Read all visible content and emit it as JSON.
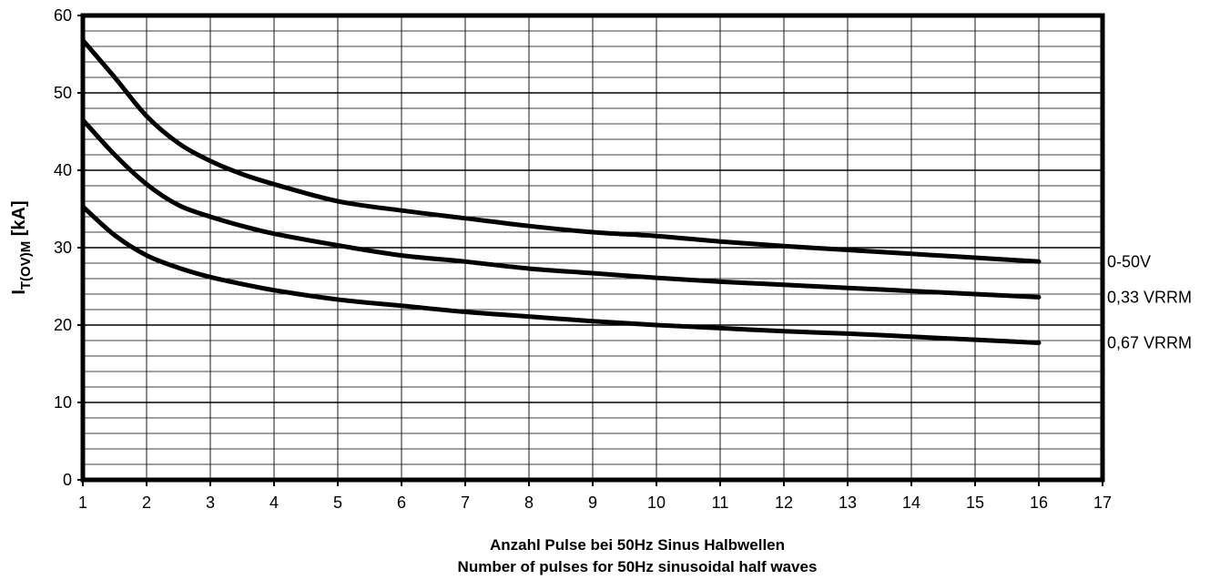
{
  "chart_data": {
    "type": "line",
    "title": "",
    "xlabel_lines": [
      "Anzahl Pulse bei 50Hz Sinus Halbwellen",
      "Number of pulses for 50Hz sinusoidal half waves"
    ],
    "ylabel_main": "I",
    "ylabel_sub": "T(OV)M",
    "ylabel_unit": " [kA]",
    "xlim": [
      1,
      17
    ],
    "ylim": [
      0,
      60
    ],
    "x_ticks": [
      1,
      2,
      3,
      4,
      5,
      6,
      7,
      8,
      9,
      10,
      11,
      12,
      13,
      14,
      15,
      16,
      17
    ],
    "y_ticks": [
      0,
      10,
      20,
      30,
      40,
      50,
      60
    ],
    "grid": true,
    "series": [
      {
        "name": "0-50V",
        "x": [
          1,
          1.5,
          2,
          2.5,
          3,
          3.5,
          4,
          5,
          6,
          7,
          8,
          9,
          10,
          11,
          12,
          13,
          14,
          15,
          16
        ],
        "y": [
          56.8,
          52,
          47,
          43.5,
          41.2,
          39.5,
          38.2,
          36,
          34.8,
          33.8,
          32.8,
          32,
          31.5,
          30.8,
          30.2,
          29.7,
          29.2,
          28.7,
          28.2
        ]
      },
      {
        "name": "0,33 VRRM",
        "x": [
          1,
          1.5,
          2,
          2.5,
          3,
          3.5,
          4,
          5,
          6,
          7,
          8,
          9,
          10,
          11,
          12,
          13,
          14,
          15,
          16
        ],
        "y": [
          46.5,
          42,
          38.2,
          35.5,
          34,
          32.8,
          31.8,
          30.3,
          29,
          28.2,
          27.3,
          26.7,
          26.1,
          25.6,
          25.2,
          24.8,
          24.4,
          24,
          23.6
        ]
      },
      {
        "name": "0,67 VRRM",
        "x": [
          1,
          1.5,
          2,
          2.5,
          3,
          3.5,
          4,
          5,
          6,
          7,
          8,
          9,
          10,
          11,
          12,
          13,
          14,
          15,
          16
        ],
        "y": [
          35.3,
          31.6,
          29,
          27.4,
          26.2,
          25.3,
          24.5,
          23.3,
          22.5,
          21.7,
          21.1,
          20.5,
          20,
          19.6,
          19.2,
          18.9,
          18.5,
          18.1,
          17.7
        ]
      }
    ]
  }
}
